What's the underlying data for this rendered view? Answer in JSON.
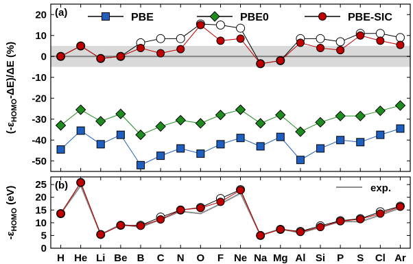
{
  "chart_data": [
    {
      "type": "line",
      "panel_label": "(a)",
      "ylabel_parts": [
        "(-ε",
        "HOMO",
        "-ΔE)/ΔE  (%)"
      ],
      "ylim": [
        -55,
        25
      ],
      "yticks": [
        20,
        10,
        0,
        -10,
        -20,
        -30,
        -40,
        -50
      ],
      "shaded_band": [
        -5,
        5
      ],
      "reference_line": 0,
      "categories": [
        "H",
        "He",
        "Li",
        "Be",
        "B",
        "C",
        "N",
        "O",
        "F",
        "Ne",
        "Na",
        "Mg",
        "Al",
        "Si",
        "P",
        "S",
        "Cl",
        "Ar"
      ],
      "legend_placement": "top",
      "series": [
        {
          "name": "PBE",
          "color": "#1f5fbf",
          "marker": "square",
          "values": [
            -44.5,
            -35.5,
            -42.0,
            -37.5,
            -52.0,
            -47.5,
            -44.0,
            -46.5,
            -42.0,
            -39.0,
            -43.0,
            -38.5,
            -49.5,
            -44.0,
            -40.0,
            -41.0,
            -37.5,
            -34.5
          ]
        },
        {
          "name": "PBE0",
          "color": "#1e8c1e",
          "marker": "diamond",
          "values": [
            -33.0,
            -25.5,
            -31.0,
            -27.5,
            -37.5,
            -33.5,
            -30.5,
            -32.0,
            -28.0,
            -25.5,
            -32.0,
            -28.0,
            -36.0,
            -31.5,
            -28.5,
            -28.5,
            -26.0,
            -23.5
          ]
        },
        {
          "name": "PBE-SIC",
          "color": "#c00000",
          "marker": "circle",
          "values": [
            0.0,
            5.0,
            -1.0,
            0.0,
            4.0,
            1.5,
            3.5,
            15.0,
            7.5,
            8.5,
            -3.5,
            -2.0,
            6.5,
            4.0,
            3.0,
            10.0,
            7.5,
            5.5
          ]
        },
        {
          "name": "",
          "color": "#000000",
          "marker": "open-circle",
          "values": [
            0.0,
            5.0,
            -1.0,
            0.0,
            6.5,
            8.5,
            8.5,
            15.5,
            15.0,
            13.5,
            -3.5,
            -2.0,
            8.5,
            8.5,
            7.0,
            11.0,
            11.0,
            9.0
          ]
        }
      ]
    },
    {
      "type": "line",
      "panel_label": "(b)",
      "ylabel_parts": [
        "-ε",
        "HOMO",
        "  (eV)"
      ],
      "ylim": [
        0,
        28
      ],
      "yticks": [
        25,
        20,
        15,
        10,
        5,
        0
      ],
      "categories": [
        "H",
        "He",
        "Li",
        "Be",
        "B",
        "C",
        "N",
        "O",
        "F",
        "Ne",
        "Na",
        "Mg",
        "Al",
        "Si",
        "P",
        "S",
        "Cl",
        "Ar"
      ],
      "legend_placement": "top-right",
      "series": [
        {
          "name": "exp.",
          "color": "#8c8c8c",
          "marker": "none",
          "values": [
            13.6,
            24.6,
            5.4,
            9.3,
            8.3,
            11.3,
            14.5,
            13.6,
            17.4,
            21.6,
            5.1,
            7.6,
            6.0,
            8.2,
            10.5,
            10.4,
            13.0,
            15.8
          ]
        },
        {
          "name": "",
          "color": "#000000",
          "marker": "open-circle",
          "values": [
            13.6,
            25.8,
            5.4,
            9.0,
            9.0,
            12.2,
            15.0,
            16.0,
            19.5,
            23.0,
            5.0,
            7.4,
            6.6,
            8.8,
            10.8,
            11.6,
            14.3,
            16.5
          ]
        },
        {
          "name": "",
          "color": "#c00000",
          "marker": "circle",
          "values": [
            13.6,
            25.8,
            5.4,
            9.0,
            8.8,
            11.3,
            15.0,
            15.8,
            18.2,
            22.8,
            5.0,
            7.4,
            6.4,
            8.3,
            10.6,
            11.4,
            13.6,
            16.3
          ]
        }
      ]
    }
  ]
}
